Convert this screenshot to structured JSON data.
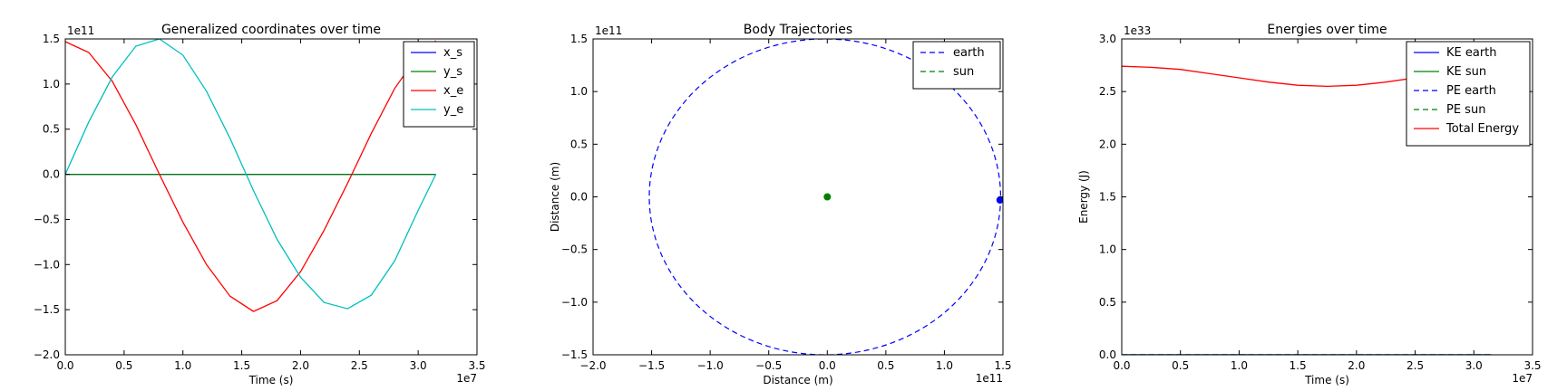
{
  "chart_data": [
    {
      "type": "line",
      "title": "Generalized coordinates over time",
      "xlabel": "Time (s)",
      "ylabel": "",
      "x_multiplier": "1e7",
      "y_multiplier": "1e11",
      "xlim": [
        0.0,
        3.5
      ],
      "ylim": [
        -2.0,
        1.5
      ],
      "xticks": [
        "0.0",
        "0.5",
        "1.0",
        "1.5",
        "2.0",
        "2.5",
        "3.0",
        "3.5"
      ],
      "yticks": [
        "1.5",
        "1.0",
        "0.5",
        "0.0",
        "−0.5",
        "−1.0",
        "−1.5",
        "−2.0"
      ],
      "legend_position": "top-right",
      "grid": false,
      "x": [
        0.0,
        0.2,
        0.4,
        0.6,
        0.8,
        1.0,
        1.2,
        1.4,
        1.6,
        1.8,
        2.0,
        2.2,
        2.4,
        2.6,
        2.8,
        3.0,
        3.15
      ],
      "series": [
        {
          "name": "x_s",
          "color": "#0000ff",
          "dash": "solid",
          "values": [
            0,
            0,
            0,
            0,
            0,
            0,
            0,
            0,
            0,
            0,
            0,
            0,
            0,
            0,
            0,
            0,
            0
          ]
        },
        {
          "name": "y_s",
          "color": "#008000",
          "dash": "solid",
          "values": [
            0,
            0,
            0,
            0,
            0,
            0,
            0,
            0,
            0,
            0,
            0,
            0,
            0,
            0,
            0,
            0,
            0
          ]
        },
        {
          "name": "x_e",
          "color": "#ff0000",
          "dash": "solid",
          "values": [
            1.47,
            1.35,
            1.03,
            0.55,
            0.0,
            -0.53,
            -1.0,
            -1.35,
            -1.52,
            -1.4,
            -1.08,
            -0.62,
            -0.1,
            0.45,
            0.95,
            1.32,
            1.48
          ]
        },
        {
          "name": "y_e",
          "color": "#00bfbf",
          "dash": "solid",
          "values": [
            0.0,
            0.58,
            1.08,
            1.42,
            1.5,
            1.32,
            0.92,
            0.4,
            -0.18,
            -0.72,
            -1.14,
            -1.42,
            -1.49,
            -1.34,
            -0.96,
            -0.4,
            0.0
          ]
        }
      ]
    },
    {
      "type": "line",
      "title": "Body Trajectories",
      "xlabel": "Distance (m)",
      "ylabel": "Distance (m)",
      "x_multiplier": "1e11",
      "y_multiplier": "1e11",
      "xlim": [
        -2.0,
        1.5
      ],
      "ylim": [
        -1.5,
        1.5
      ],
      "xticks": [
        "−2.0",
        "−1.5",
        "−1.0",
        "−0.5",
        "0.0",
        "0.5",
        "1.0",
        "1.5"
      ],
      "yticks": [
        "1.5",
        "1.0",
        "0.5",
        "0.0",
        "−0.5",
        "−1.0",
        "−1.5"
      ],
      "legend_position": "top-right",
      "grid": false,
      "series": [
        {
          "name": "earth",
          "color": "#0000ff",
          "dash": "dashed",
          "shape": "ellipse",
          "center": [
            -0.02,
            0.0
          ],
          "radius_x": 1.5,
          "radius_y": 1.5,
          "marker": [
            1.475,
            -0.03
          ]
        },
        {
          "name": "sun",
          "color": "#008000",
          "dash": "dashed",
          "shape": "point",
          "marker": [
            0.0,
            0.0
          ]
        }
      ]
    },
    {
      "type": "line",
      "title": "Energies over time",
      "xlabel": "Time (s)",
      "ylabel": "Energy (J)",
      "x_multiplier": "1e7",
      "y_multiplier": "1e33",
      "xlim": [
        0.0,
        3.5
      ],
      "ylim": [
        0.0,
        3.0
      ],
      "xticks": [
        "0.0",
        "0.5",
        "1.0",
        "1.5",
        "2.0",
        "2.5",
        "3.0",
        "3.5"
      ],
      "yticks": [
        "3.0",
        "2.5",
        "2.0",
        "1.5",
        "1.0",
        "0.5",
        "0.0"
      ],
      "legend_position": "top-right",
      "grid": false,
      "x": [
        0.0,
        0.25,
        0.5,
        0.75,
        1.0,
        1.25,
        1.5,
        1.75,
        2.0,
        2.25,
        2.5,
        2.75,
        3.0,
        3.15
      ],
      "series": [
        {
          "name": "KE earth",
          "color": "#0000ff",
          "dash": "solid",
          "values": [
            0,
            0,
            0,
            0,
            0,
            0,
            0,
            0,
            0,
            0,
            0,
            0,
            0,
            0
          ]
        },
        {
          "name": "KE sun",
          "color": "#008000",
          "dash": "solid",
          "values": [
            0,
            0,
            0,
            0,
            0,
            0,
            0,
            0,
            0,
            0,
            0,
            0,
            0,
            0
          ]
        },
        {
          "name": "PE earth",
          "color": "#0000ff",
          "dash": "dashed",
          "values": [
            0,
            0,
            0,
            0,
            0,
            0,
            0,
            0,
            0,
            0,
            0,
            0,
            0,
            0
          ]
        },
        {
          "name": "PE sun",
          "color": "#008000",
          "dash": "dashed",
          "values": [
            0,
            0,
            0,
            0,
            0,
            0,
            0,
            0,
            0,
            0,
            0,
            0,
            0,
            0
          ]
        },
        {
          "name": "Total Energy",
          "color": "#ff0000",
          "dash": "solid",
          "values": [
            2.74,
            2.73,
            2.71,
            2.67,
            2.63,
            2.59,
            2.56,
            2.55,
            2.56,
            2.59,
            2.63,
            2.68,
            2.72,
            2.74
          ]
        }
      ]
    }
  ]
}
